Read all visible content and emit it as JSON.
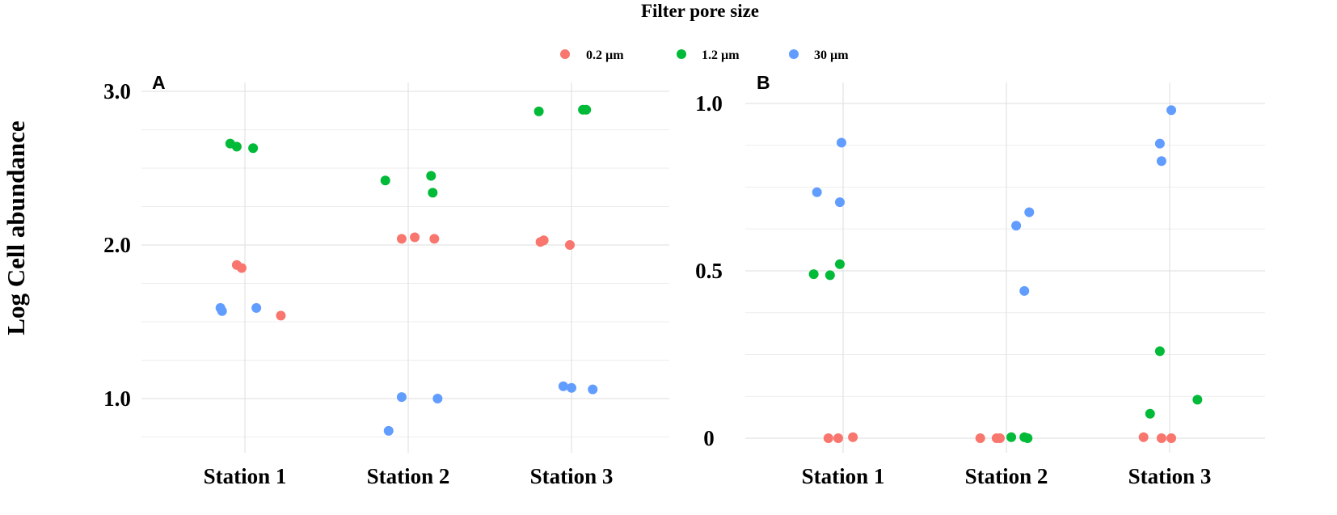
{
  "legend": {
    "title": "Filter pore size",
    "items": [
      {
        "label": "0.2 µm",
        "color": "#F8766D"
      },
      {
        "label": "1.2 µm",
        "color": "#00BA38"
      },
      {
        "label": "30 µm",
        "color": "#619CFF"
      }
    ]
  },
  "y_axis_label": "Log Cell abundance",
  "chart_data": [
    {
      "type": "scatter",
      "panel": "A",
      "title": "",
      "xlabel": "",
      "ylabel": "Log Cell abundance",
      "categories": [
        "Station 1",
        "Station 2",
        "Station 3"
      ],
      "ylim": [
        0.73,
        3.05
      ],
      "yticks": [
        1.0,
        2.0,
        3.0
      ],
      "ytick_labels": [
        "1.0",
        "2.0",
        "3.0"
      ],
      "series": [
        {
          "name": "0.2 µm",
          "color": "#F8766D",
          "points": [
            {
              "x": "Station 1",
              "jitter": -0.05,
              "y": 1.87
            },
            {
              "x": "Station 1",
              "jitter": -0.02,
              "y": 1.85
            },
            {
              "x": "Station 1",
              "jitter": 0.22,
              "y": 1.54
            },
            {
              "x": "Station 2",
              "jitter": -0.04,
              "y": 2.04
            },
            {
              "x": "Station 2",
              "jitter": 0.04,
              "y": 2.05
            },
            {
              "x": "Station 2",
              "jitter": 0.16,
              "y": 2.04
            },
            {
              "x": "Station 3",
              "jitter": -0.19,
              "y": 2.02
            },
            {
              "x": "Station 3",
              "jitter": -0.17,
              "y": 2.03
            },
            {
              "x": "Station 3",
              "jitter": -0.01,
              "y": 2.0
            }
          ]
        },
        {
          "name": "1.2 µm",
          "color": "#00BA38",
          "points": [
            {
              "x": "Station 1",
              "jitter": -0.09,
              "y": 2.66
            },
            {
              "x": "Station 1",
              "jitter": -0.05,
              "y": 2.64
            },
            {
              "x": "Station 1",
              "jitter": 0.05,
              "y": 2.63
            },
            {
              "x": "Station 2",
              "jitter": -0.14,
              "y": 2.42
            },
            {
              "x": "Station 2",
              "jitter": 0.14,
              "y": 2.45
            },
            {
              "x": "Station 2",
              "jitter": 0.15,
              "y": 2.34
            },
            {
              "x": "Station 3",
              "jitter": -0.2,
              "y": 2.87
            },
            {
              "x": "Station 3",
              "jitter": 0.07,
              "y": 2.88
            },
            {
              "x": "Station 3",
              "jitter": 0.09,
              "y": 2.88
            }
          ]
        },
        {
          "name": "30 µm",
          "color": "#619CFF",
          "points": [
            {
              "x": "Station 1",
              "jitter": -0.15,
              "y": 1.59
            },
            {
              "x": "Station 1",
              "jitter": -0.14,
              "y": 1.57
            },
            {
              "x": "Station 1",
              "jitter": 0.07,
              "y": 1.59
            },
            {
              "x": "Station 2",
              "jitter": -0.12,
              "y": 0.79
            },
            {
              "x": "Station 2",
              "jitter": -0.04,
              "y": 1.01
            },
            {
              "x": "Station 2",
              "jitter": 0.18,
              "y": 1.0
            },
            {
              "x": "Station 3",
              "jitter": -0.05,
              "y": 1.08
            },
            {
              "x": "Station 3",
              "jitter": 0.0,
              "y": 1.07
            },
            {
              "x": "Station 3",
              "jitter": 0.13,
              "y": 1.06
            }
          ]
        }
      ]
    },
    {
      "type": "scatter",
      "panel": "B",
      "title": "",
      "xlabel": "",
      "ylabel": "Log Cell abundance",
      "categories": [
        "Station 1",
        "Station 2",
        "Station 3"
      ],
      "ylim": [
        -0.02,
        1.02
      ],
      "yticks": [
        0,
        0.5,
        1.0
      ],
      "ytick_labels": [
        "0",
        "0.5",
        "1.0"
      ],
      "series": [
        {
          "name": "0.2 µm",
          "color": "#F8766D",
          "points": [
            {
              "x": "Station 1",
              "jitter": -0.09,
              "y": 0.0
            },
            {
              "x": "Station 1",
              "jitter": -0.03,
              "y": 0.0
            },
            {
              "x": "Station 1",
              "jitter": 0.06,
              "y": 0.003
            },
            {
              "x": "Station 2",
              "jitter": -0.16,
              "y": 0.0
            },
            {
              "x": "Station 2",
              "jitter": -0.06,
              "y": 0.0
            },
            {
              "x": "Station 2",
              "jitter": -0.04,
              "y": 0.0
            },
            {
              "x": "Station 3",
              "jitter": -0.16,
              "y": 0.003
            },
            {
              "x": "Station 3",
              "jitter": -0.05,
              "y": 0.0
            },
            {
              "x": "Station 3",
              "jitter": 0.01,
              "y": 0.0
            }
          ]
        },
        {
          "name": "1.2 µm",
          "color": "#00BA38",
          "points": [
            {
              "x": "Station 1",
              "jitter": -0.18,
              "y": 0.49
            },
            {
              "x": "Station 1",
              "jitter": -0.08,
              "y": 0.487
            },
            {
              "x": "Station 1",
              "jitter": -0.02,
              "y": 0.52
            },
            {
              "x": "Station 2",
              "jitter": 0.03,
              "y": 0.003
            },
            {
              "x": "Station 2",
              "jitter": 0.11,
              "y": 0.003
            },
            {
              "x": "Station 2",
              "jitter": 0.13,
              "y": 0.0
            },
            {
              "x": "Station 3",
              "jitter": -0.12,
              "y": 0.073
            },
            {
              "x": "Station 3",
              "jitter": -0.06,
              "y": 0.26
            },
            {
              "x": "Station 3",
              "jitter": 0.17,
              "y": 0.115
            }
          ]
        },
        {
          "name": "30 µm",
          "color": "#619CFF",
          "points": [
            {
              "x": "Station 1",
              "jitter": -0.16,
              "y": 0.735
            },
            {
              "x": "Station 1",
              "jitter": -0.01,
              "y": 0.883
            },
            {
              "x": "Station 1",
              "jitter": -0.02,
              "y": 0.705
            },
            {
              "x": "Station 2",
              "jitter": 0.06,
              "y": 0.635
            },
            {
              "x": "Station 2",
              "jitter": 0.11,
              "y": 0.44
            },
            {
              "x": "Station 2",
              "jitter": 0.14,
              "y": 0.675
            },
            {
              "x": "Station 3",
              "jitter": -0.06,
              "y": 0.88
            },
            {
              "x": "Station 3",
              "jitter": -0.05,
              "y": 0.828
            },
            {
              "x": "Station 3",
              "jitter": 0.01,
              "y": 0.98
            }
          ]
        }
      ]
    }
  ]
}
